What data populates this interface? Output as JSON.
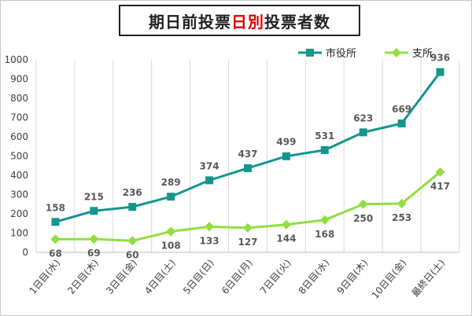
{
  "chart_data": {
    "type": "line",
    "title": {
      "part1": "期日前投票",
      "highlight": "日別",
      "part2": "投票者数"
    },
    "categories": [
      "1日目(水)",
      "2日目(木)",
      "3日目(金)",
      "4日目(土)",
      "5日目(日)",
      "6日目(月)",
      "7日目(火)",
      "8日目(水)",
      "9日目(木)",
      "10日目(金)",
      "最終日(土)"
    ],
    "ylim": [
      0,
      1000
    ],
    "yticks": [
      0,
      100,
      200,
      300,
      400,
      500,
      600,
      700,
      800,
      900,
      1000
    ],
    "grid": "vertical",
    "legend_position": "top-right",
    "series": [
      {
        "name": "市役所",
        "color": "#13968e",
        "marker": "square",
        "label_side": "above",
        "values": [
          158,
          215,
          236,
          289,
          374,
          437,
          499,
          531,
          623,
          669,
          936
        ]
      },
      {
        "name": "支所",
        "color": "#90e040",
        "marker": "diamond",
        "label_side": "below",
        "values": [
          68,
          69,
          60,
          108,
          133,
          127,
          144,
          168,
          250,
          253,
          417
        ]
      }
    ]
  }
}
